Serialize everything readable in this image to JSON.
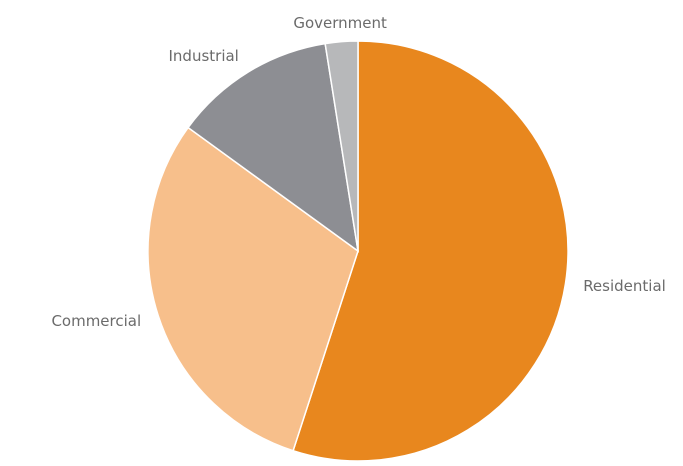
{
  "chart_data": {
    "type": "pie",
    "title": "",
    "start_angle_deg": 0,
    "direction": "clockwise",
    "slices": [
      {
        "label": "Residential",
        "value": 55.0,
        "color": "#e8871e"
      },
      {
        "label": "Commercial",
        "value": 30.0,
        "color": "#f7bf8b"
      },
      {
        "label": "Industrial",
        "value": 12.5,
        "color": "#8d8e93"
      },
      {
        "label": "Government",
        "value": 2.5,
        "color": "#b7b8ba"
      }
    ],
    "legend": "none",
    "label_placement": "outside"
  }
}
